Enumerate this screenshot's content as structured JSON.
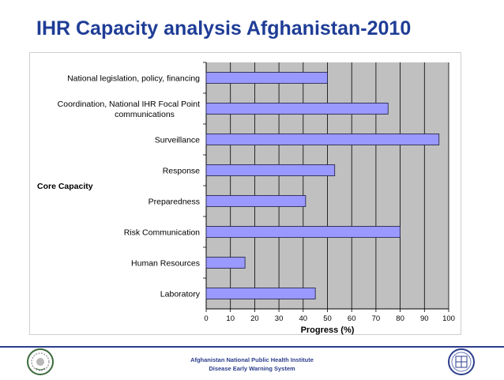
{
  "slide": {
    "title": "IHR Capacity analysis Afghanistan-2010",
    "footer_line1": "Afghanistan National Public Health Institute",
    "footer_line2": "Disease Early Warning System"
  },
  "colors": {
    "title": "#1f3d96",
    "bar_fill": "#9999ff",
    "bar_stroke": "#1a1a40",
    "plot_bg": "#c0c0c0",
    "grid": "#000000",
    "footer_rule": "#2b3e8c"
  },
  "icons": {
    "left_logo": "anphi-emblem-icon",
    "right_logo": "dews-emblem-icon"
  },
  "chart_data": {
    "type": "bar",
    "orientation": "horizontal",
    "categories": [
      [
        "National legislation, policy, financing"
      ],
      [
        "Coordination, National IHR Focal Point",
        "communications"
      ],
      [
        "Surveillance"
      ],
      [
        "Response"
      ],
      [
        "Preparedness"
      ],
      [
        "Risk Communication"
      ],
      [
        "Human Resources"
      ],
      [
        "Laboratory"
      ]
    ],
    "values": [
      50,
      75,
      96,
      53,
      41,
      80,
      16,
      45
    ],
    "xlabel": "Progress (%)",
    "ylabel": "Core Capacity",
    "xlim": [
      0,
      100
    ],
    "xticks": [
      0,
      10,
      20,
      30,
      40,
      50,
      60,
      70,
      80,
      90,
      100
    ],
    "grid": "vertical",
    "legend": "none"
  }
}
